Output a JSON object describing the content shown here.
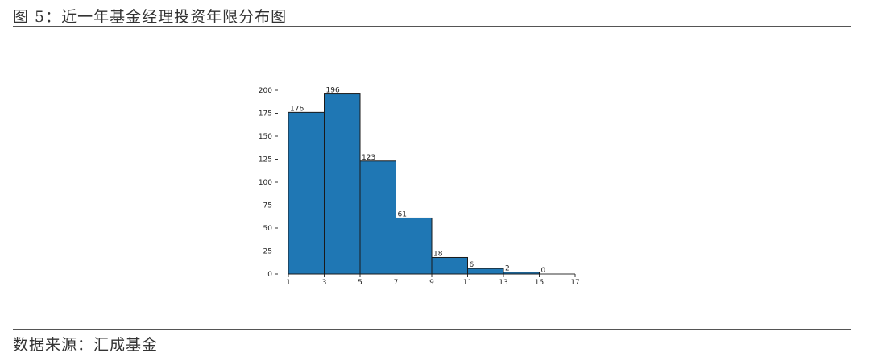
{
  "header": {
    "title": "图 5：近一年基金经理投资年限分布图"
  },
  "footer": {
    "source": "数据来源：汇成基金"
  },
  "colors": {
    "bar_fill": "#1f77b4",
    "bar_stroke": "#1a1a1a"
  },
  "chart_data": {
    "type": "bar",
    "bins": [
      [
        1,
        3
      ],
      [
        3,
        5
      ],
      [
        5,
        7
      ],
      [
        7,
        9
      ],
      [
        9,
        11
      ],
      [
        11,
        13
      ],
      [
        13,
        15
      ],
      [
        15,
        17
      ]
    ],
    "values": [
      176,
      196,
      123,
      61,
      18,
      6,
      2,
      0
    ],
    "data_labels": [
      "176",
      "196",
      "123",
      "61",
      "18",
      "6",
      "2",
      "0"
    ],
    "xticks": [
      1,
      3,
      5,
      7,
      9,
      11,
      13,
      15,
      17
    ],
    "yticks": [
      0,
      25,
      50,
      75,
      100,
      125,
      150,
      175,
      200
    ],
    "xlim": [
      1,
      17
    ],
    "ylim": [
      0,
      200
    ],
    "title": "",
    "xlabel": "",
    "ylabel": "",
    "grid": false
  }
}
